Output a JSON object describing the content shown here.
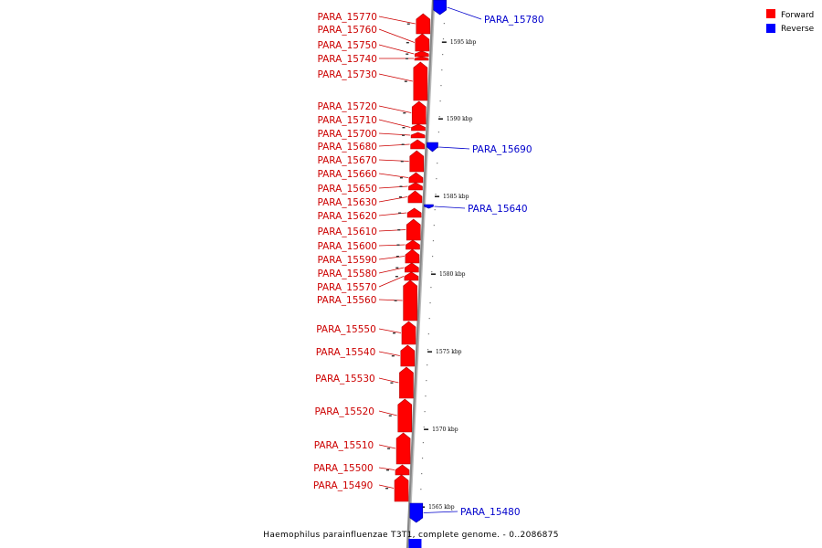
{
  "caption": "Haemophilus parainfluenzae T3T1, complete genome. - 0..2086875",
  "legend": {
    "forward": {
      "label": "Forward",
      "color": "#ff0000"
    },
    "reverse": {
      "label": "Reverse",
      "color": "#0000ff"
    }
  },
  "colors": {
    "forward_label": "#cc0000",
    "reverse_label": "#0000cc",
    "backbone": "#888888"
  },
  "scale_ticks": [
    "1595 kbp",
    "1590 kbp",
    "1585 kbp",
    "1580 kbp",
    "1575 kbp",
    "1570 kbp",
    "1565 kbp"
  ],
  "forward_genes": [
    "PARA_15770",
    "PARA_15760",
    "PARA_15750",
    "PARA_15740",
    "PARA_15730",
    "PARA_15720",
    "PARA_15710",
    "PARA_15700",
    "PARA_15680",
    "PARA_15670",
    "PARA_15660",
    "PARA_15650",
    "PARA_15630",
    "PARA_15620",
    "PARA_15610",
    "PARA_15600",
    "PARA_15590",
    "PARA_15580",
    "PARA_15570",
    "PARA_15560",
    "PARA_15550",
    "PARA_15540",
    "PARA_15530",
    "PARA_15520",
    "PARA_15510",
    "PARA_15500",
    "PARA_15490"
  ],
  "reverse_genes": [
    "PARA_15780",
    "PARA_15690",
    "PARA_15640",
    "PARA_15480"
  ]
}
